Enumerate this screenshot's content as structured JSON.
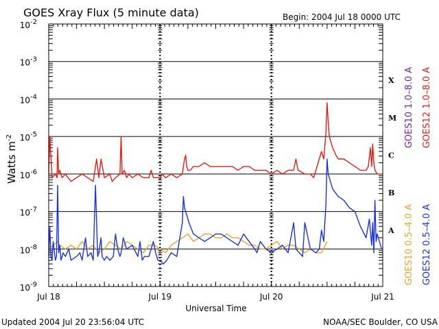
{
  "chart_data": {
    "type": "line",
    "title": "GOES Xray Flux (5 minute data)",
    "begin_label": "Begin:  2004 Jul 18 0000 UTC",
    "ylabel": "Watts m",
    "ylabel_sup": "-2",
    "xlabel": "Universal Time",
    "footer_left": "Updated 2004 Jul 20 23:56:04 UTC",
    "footer_right": "NOAA/SEC Boulder, CO USA",
    "x_unit": "days since 2004 Jul 18 00:00 UTC",
    "xlim": [
      0,
      3
    ],
    "y_scale": "log",
    "ylim_exponent": [
      -9,
      -2
    ],
    "y_ticks": [
      {
        "exp": -2,
        "base": "10",
        "sup": "-2"
      },
      {
        "exp": -3,
        "base": "10",
        "sup": "-3"
      },
      {
        "exp": -4,
        "base": "10",
        "sup": "-4"
      },
      {
        "exp": -5,
        "base": "10",
        "sup": "-5"
      },
      {
        "exp": -6,
        "base": "10",
        "sup": "-6"
      },
      {
        "exp": -7,
        "base": "10",
        "sup": "-7"
      },
      {
        "exp": -8,
        "base": "10",
        "sup": "-8"
      },
      {
        "exp": -9,
        "base": "10",
        "sup": "-9"
      }
    ],
    "x_ticks": [
      {
        "value": 0,
        "label": "Jul 18"
      },
      {
        "value": 1,
        "label": "Jul 19"
      },
      {
        "value": 2,
        "label": "Jul 20"
      },
      {
        "value": 3,
        "label": "Jul 21"
      }
    ],
    "flare_classes": [
      {
        "label": "X",
        "exp": -3.5
      },
      {
        "label": "M",
        "exp": -4.5
      },
      {
        "label": "C",
        "exp": -5.5
      },
      {
        "label": "B",
        "exp": -6.5
      },
      {
        "label": "A",
        "exp": -7.5
      }
    ],
    "grid_lines_exp": [
      -3,
      -4,
      -5,
      -6,
      -7,
      -8
    ],
    "legend": [
      {
        "text": "GOES10 1.0–8.0 A",
        "color": "#7b1fa2"
      },
      {
        "text": "GOES12 1.0–8.0 A",
        "color": "#e8190f"
      },
      {
        "text": "GOES10 0.5–4.0 A",
        "color": "#f0a020"
      },
      {
        "text": "GOES12 0.5–4.0 A",
        "color": "#1730e6"
      }
    ],
    "series": [
      {
        "name": "GOES12 1.0-8.0 A",
        "color": "#e8190f",
        "x": [
          0.0,
          0.01,
          0.03,
          0.06,
          0.075,
          0.08,
          0.09,
          0.1,
          0.12,
          0.15,
          0.2,
          0.25,
          0.3,
          0.35,
          0.4,
          0.43,
          0.45,
          0.47,
          0.5,
          0.55,
          0.57,
          0.6,
          0.64,
          0.65,
          0.66,
          0.68,
          0.7,
          0.72,
          0.75,
          0.8,
          0.85,
          0.9,
          0.92,
          0.94,
          0.97,
          1.0,
          1.02,
          1.05,
          1.1,
          1.15,
          1.2,
          1.22,
          1.23,
          1.24,
          1.25,
          1.27,
          1.3,
          1.35,
          1.4,
          1.45,
          1.47,
          1.5,
          1.55,
          1.6,
          1.65,
          1.7,
          1.75,
          1.8,
          1.85,
          1.9,
          1.95,
          2.0,
          2.05,
          2.1,
          2.15,
          2.2,
          2.22,
          2.24,
          2.3,
          2.35,
          2.38,
          2.42,
          2.45,
          2.47,
          2.49,
          2.5,
          2.51,
          2.52,
          2.53,
          2.55,
          2.58,
          2.6,
          2.65,
          2.7,
          2.75,
          2.8,
          2.85,
          2.87,
          2.89,
          2.9,
          2.91,
          2.92,
          2.93,
          2.95,
          2.98,
          3.0
        ],
        "y": [
          -6.0,
          -5.0,
          -6.1,
          -6.0,
          -6.1,
          -5.3,
          -6.0,
          -5.9,
          -6.1,
          -6.0,
          -6.2,
          -6.1,
          -6.0,
          -6.1,
          -6.2,
          -5.6,
          -6.1,
          -5.6,
          -6.1,
          -6.0,
          -6.2,
          -6.1,
          -6.0,
          -5.0,
          -6.0,
          -5.9,
          -6.1,
          -6.0,
          -6.1,
          -6.0,
          -6.1,
          -6.1,
          -5.9,
          -6.1,
          -6.1,
          -6.1,
          -6.0,
          -6.1,
          -6.0,
          -6.1,
          -6.0,
          -5.6,
          -5.5,
          -5.8,
          -5.9,
          -5.9,
          -5.8,
          -5.8,
          -5.7,
          -5.8,
          -5.8,
          -5.8,
          -5.8,
          -5.8,
          -5.8,
          -5.9,
          -5.8,
          -5.8,
          -5.9,
          -5.9,
          -5.9,
          -6.0,
          -5.9,
          -6.0,
          -5.9,
          -5.9,
          -5.6,
          -5.9,
          -6.0,
          -6.0,
          -6.1,
          -5.7,
          -5.4,
          -5.6,
          -4.9,
          -4.1,
          -4.6,
          -5.0,
          -5.1,
          -5.3,
          -5.5,
          -5.6,
          -5.6,
          -5.7,
          -5.8,
          -5.9,
          -5.9,
          -5.8,
          -5.3,
          -5.8,
          -5.2,
          -5.7,
          -5.9,
          -6.0,
          -6.0,
          -6.0
        ]
      },
      {
        "name": "GOES10 0.5-4.0 A",
        "color": "#f0a020",
        "x": [
          0.0,
          0.04,
          0.08,
          0.1,
          0.15,
          0.2,
          0.25,
          0.3,
          0.35,
          0.4,
          0.45,
          0.5,
          0.55,
          0.6,
          0.65,
          0.7,
          0.75,
          0.8,
          0.85,
          0.9,
          0.95,
          1.0,
          1.05,
          1.1,
          1.15,
          1.2,
          1.25,
          1.3,
          1.35,
          1.4,
          1.45,
          1.5,
          1.55,
          1.6,
          1.65,
          1.7,
          1.75,
          1.8,
          1.85,
          1.9,
          1.95,
          2.0,
          2.05,
          2.1,
          2.15,
          2.2,
          2.25,
          2.3,
          2.35,
          2.4,
          2.45,
          2.5
        ],
        "y": [
          -8.0,
          -7.9,
          -7.8,
          -7.9,
          -8.0,
          -7.9,
          -8.0,
          -7.8,
          -8.0,
          -7.9,
          -8.1,
          -8.0,
          -7.8,
          -7.9,
          -8.0,
          -7.8,
          -7.9,
          -8.0,
          -8.1,
          -7.9,
          -7.9,
          -8.0,
          -8.1,
          -7.9,
          -7.8,
          -7.7,
          -7.6,
          -7.8,
          -7.7,
          -7.6,
          -7.6,
          -7.7,
          -7.7,
          -7.6,
          -7.7,
          -7.7,
          -7.8,
          -7.9,
          -7.9,
          -8.0,
          -8.0,
          -7.9,
          -7.8,
          -8.0,
          -7.9,
          -7.9,
          -8.0,
          -8.1,
          -8.0,
          -8.1,
          -8.1,
          -7.8
        ]
      },
      {
        "name": "GOES12 0.5-4.0 A",
        "color": "#1730e6",
        "x": [
          0.0,
          0.01,
          0.02,
          0.03,
          0.04,
          0.06,
          0.07,
          0.08,
          0.09,
          0.1,
          0.11,
          0.13,
          0.15,
          0.18,
          0.2,
          0.25,
          0.28,
          0.3,
          0.33,
          0.35,
          0.38,
          0.4,
          0.42,
          0.44,
          0.45,
          0.47,
          0.48,
          0.5,
          0.52,
          0.55,
          0.58,
          0.6,
          0.62,
          0.64,
          0.65,
          0.67,
          0.7,
          0.75,
          0.8,
          0.82,
          0.84,
          0.86,
          0.9,
          0.94,
          0.96,
          0.98,
          1.0,
          1.03,
          1.06,
          1.1,
          1.15,
          1.2,
          1.21,
          1.22,
          1.24,
          1.26,
          1.3,
          1.35,
          1.4,
          1.45,
          1.5,
          1.55,
          1.6,
          1.65,
          1.7,
          1.75,
          1.8,
          1.85,
          1.87,
          1.9,
          1.95,
          2.0,
          2.05,
          2.1,
          2.15,
          2.2,
          2.22,
          2.25,
          2.28,
          2.3,
          2.35,
          2.4,
          2.43,
          2.45,
          2.47,
          2.49,
          2.5,
          2.51,
          2.52,
          2.55,
          2.6,
          2.65,
          2.7,
          2.75,
          2.8,
          2.85,
          2.88,
          2.9,
          2.91,
          2.92,
          2.93,
          2.94,
          2.95,
          2.97,
          2.99,
          3.0
        ],
        "y": [
          -8.2,
          -7.4,
          -8.2,
          -8.3,
          -7.8,
          -8.3,
          -8.2,
          -6.3,
          -8.1,
          -7.9,
          -8.3,
          -8.1,
          -8.2,
          -8.0,
          -8.3,
          -8.2,
          -8.1,
          -8.3,
          -7.7,
          -8.2,
          -8.1,
          -8.3,
          -6.3,
          -8.2,
          -8.1,
          -7.7,
          -8.2,
          -8.3,
          -8.2,
          -8.3,
          -8.2,
          -7.6,
          -8.0,
          -8.2,
          -8.1,
          -7.7,
          -8.0,
          -7.9,
          -8.2,
          -7.8,
          -8.3,
          -8.2,
          -8.2,
          -7.8,
          -8.1,
          -8.3,
          -8.3,
          -8.4,
          -8.3,
          -8.1,
          -8.2,
          -7.3,
          -6.6,
          -6.9,
          -7.1,
          -7.3,
          -7.6,
          -7.7,
          -7.8,
          -7.7,
          -7.6,
          -7.6,
          -7.7,
          -7.8,
          -7.9,
          -7.6,
          -7.8,
          -8.0,
          -8.1,
          -7.8,
          -8.0,
          -8.1,
          -8.0,
          -7.9,
          -8.1,
          -7.3,
          -8.0,
          -8.1,
          -8.2,
          -7.3,
          -8.0,
          -8.1,
          -8.0,
          -7.5,
          -7.8,
          -6.8,
          -5.6,
          -6.0,
          -6.1,
          -6.4,
          -6.6,
          -6.7,
          -6.9,
          -7.0,
          -7.4,
          -7.7,
          -7.2,
          -7.9,
          -7.3,
          -8.1,
          -6.7,
          -7.8,
          -7.6,
          -7.8,
          -8.0,
          -8.0
        ]
      }
    ]
  }
}
